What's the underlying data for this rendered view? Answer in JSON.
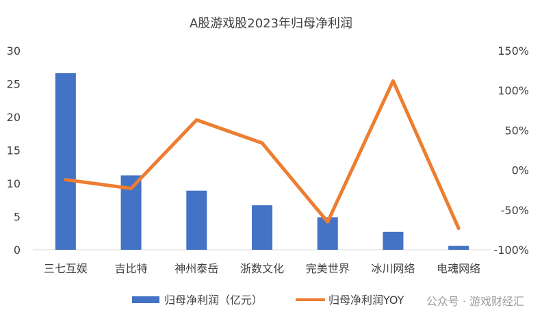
{
  "chart_data": {
    "type": "bar",
    "title": "A股游戏股2023年归母净利润",
    "categories": [
      "三七互娱",
      "吉比特",
      "神州泰岳",
      "浙数文化",
      "完美世界",
      "冰川网络",
      "电魂网络"
    ],
    "series": [
      {
        "name": "归母净利润（亿元）",
        "type": "bar",
        "axis": "left",
        "color": "#4472C4",
        "values": [
          26.6,
          11.2,
          8.9,
          6.7,
          4.9,
          2.7,
          0.6
        ]
      },
      {
        "name": "归母净利润YOY",
        "type": "line",
        "axis": "right",
        "color": "#ED7D31",
        "values": [
          -12,
          -23,
          63,
          34,
          -65,
          112,
          -73
        ]
      }
    ],
    "left_axis": {
      "min": 0,
      "max": 30,
      "ticks": [
        "0",
        "5",
        "10",
        "15",
        "20",
        "25",
        "30"
      ]
    },
    "right_axis": {
      "min": -100,
      "max": 150,
      "ticks": [
        "-100%",
        "-50%",
        "0%",
        "50%",
        "100%",
        "150%"
      ]
    },
    "grid": false,
    "legend_position": "bottom"
  },
  "watermark": "公众号 · 游戏财经汇"
}
